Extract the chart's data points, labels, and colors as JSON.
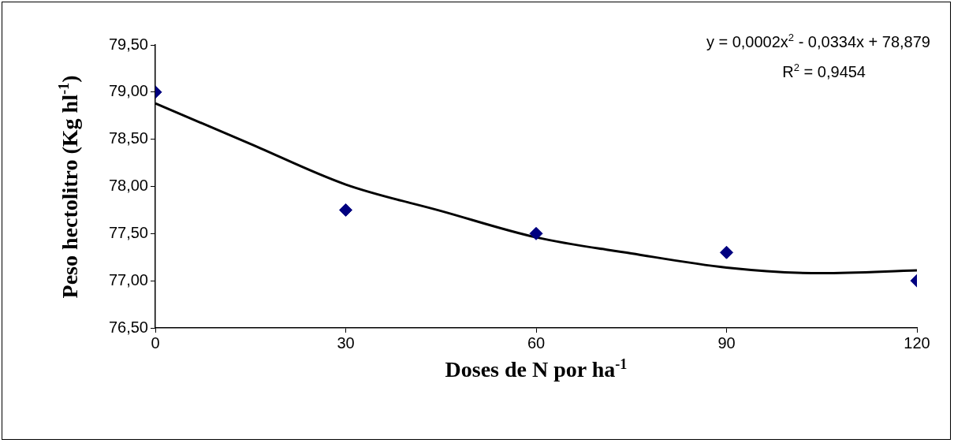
{
  "chart_data": {
    "type": "scatter",
    "xlabel": "Doses de N por ha$^{-1}$",
    "ylabel": "Peso hectolitro (Kg hl$^{-1}$)",
    "x": [
      0,
      30,
      60,
      90,
      120
    ],
    "series": [
      {
        "type": "scatter",
        "color": "#000080",
        "marker": "diamond",
        "values": [
          79.0,
          77.75,
          77.5,
          77.3,
          77.0
        ]
      },
      {
        "type": "line",
        "color": "#000000",
        "marker": "none",
        "line_style": "solid",
        "x": [
          0,
          15,
          30,
          45,
          60,
          75,
          90,
          105,
          120
        ],
        "values": [
          78.88,
          78.45,
          78.02,
          77.74,
          77.46,
          77.29,
          77.14,
          77.08,
          77.11
        ]
      }
    ],
    "xlim": [
      0,
      120
    ],
    "xticks": [
      0,
      30,
      60,
      90,
      120
    ],
    "ylim": [
      76.5,
      79.5
    ],
    "yticks": [
      {
        "value": 76.5,
        "label": "76,50"
      },
      {
        "value": 77,
        "label": "77,00"
      },
      {
        "value": 77.5,
        "label": "77,50"
      },
      {
        "value": 78,
        "label": "78,00"
      },
      {
        "value": 78.5,
        "label": "78,50"
      },
      {
        "value": 79,
        "label": "79,00"
      },
      {
        "value": 79.5,
        "label": "79,50"
      }
    ],
    "grid": false,
    "legend": false,
    "annotations": [
      "y = 0,0002x$^{2}$ - 0,0334x + 78,879",
      "R$^{2}$ = 0,9454"
    ]
  }
}
